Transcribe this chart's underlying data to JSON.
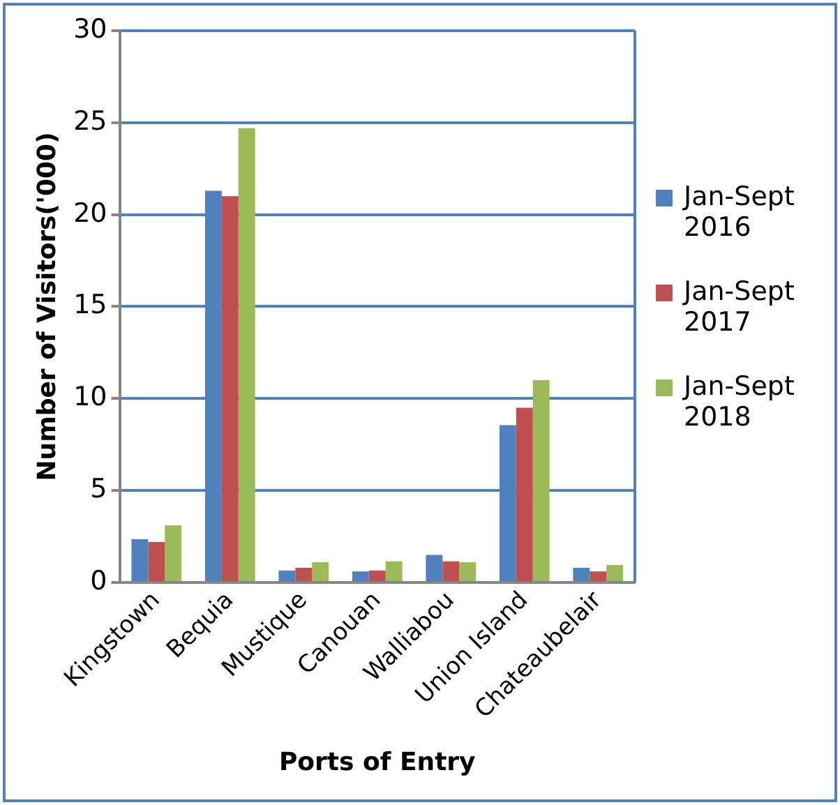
{
  "chart_data": {
    "type": "bar",
    "xlabel": "Ports of Entry",
    "ylabel": "Number of Visitors('000)",
    "categories": [
      "Kingstown",
      "Bequia",
      "Mustique",
      "Canouan",
      "Walliabou",
      "Union Island",
      "Chateaubelair"
    ],
    "series": [
      {
        "name": "Jan-Sept 2016",
        "color": "#4f81bd",
        "values": [
          2.35,
          21.3,
          0.65,
          0.6,
          1.5,
          8.55,
          0.8
        ]
      },
      {
        "name": "Jan-Sept 2017",
        "color": "#c0504d",
        "values": [
          2.2,
          21.0,
          0.8,
          0.65,
          1.15,
          9.5,
          0.6
        ]
      },
      {
        "name": "Jan-Sept 2018",
        "color": "#9bbb59",
        "values": [
          3.1,
          24.7,
          1.1,
          1.15,
          1.1,
          11.0,
          0.95
        ]
      }
    ],
    "ylim": [
      0,
      30
    ],
    "yticks": [
      0,
      5,
      10,
      15,
      20,
      25,
      30
    ],
    "grid": "y",
    "legend": "right"
  }
}
